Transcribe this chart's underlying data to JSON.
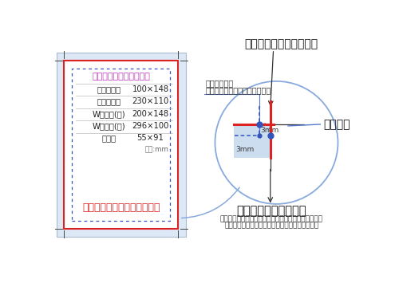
{
  "bg_color": "#ffffff",
  "light_blue": "#dce8f5",
  "light_blue2": "#ccddf0",
  "red_color": "#dd2222",
  "blue_color": "#3355bb",
  "blue_line": "#5577cc",
  "dark_text": "#111111",
  "gray_text": "#555555",
  "table_title": "当社規定仕上がりサイズ",
  "table_rows": [
    [
      "普通サイズ",
      "100×148"
    ],
    [
      "大判サイズ",
      "230×110"
    ],
    [
      "Wサイズ(縦)",
      "200×148"
    ],
    [
      "Wサイズ(横)",
      "296×100"
    ],
    [
      "名　刺",
      "55×91"
    ]
  ],
  "unit_text": "単位:mm",
  "warning_text": "文字や図形はこの範囲内で！",
  "label_top": "仕上がり線（断裁位置）",
  "label_inner": "内トンボ",
  "label_bleed": "塗り足し（裁ちしろ）",
  "label_bleed_sub1": "この範囲の更に外側には何もないようにして下さい。",
  "label_bleed_sub2": "はみ出てしまう場合はマスク処理をして下さい。",
  "label_text_note1": "文字や図形は",
  "label_text_note2": "ここより内側に（天地左右）。",
  "label_3mm_h": "3mm",
  "label_3mm_v": "3mm",
  "title_color": "#bb33bb"
}
